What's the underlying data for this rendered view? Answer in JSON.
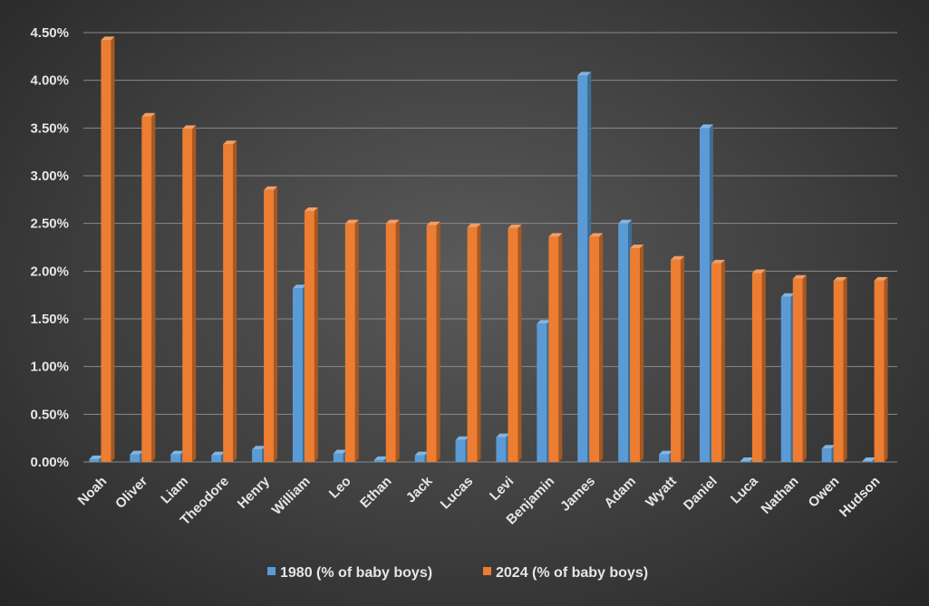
{
  "chart_data": {
    "type": "bar",
    "categories": [
      "Noah",
      "Oliver",
      "Liam",
      "Theodore",
      "Henry",
      "William",
      "Leo",
      "Ethan",
      "Jack",
      "Lucas",
      "Levi",
      "Benjamin",
      "James",
      "Adam",
      "Wyatt",
      "Daniel",
      "Luca",
      "Nathan",
      "Owen",
      "Hudson"
    ],
    "series": [
      {
        "name": "1980 (% of baby boys)",
        "color": "#5b9bd5",
        "values": [
          0.03,
          0.08,
          0.08,
          0.07,
          0.13,
          1.82,
          0.09,
          0.02,
          0.07,
          0.23,
          0.26,
          1.45,
          4.05,
          2.5,
          0.08,
          3.5,
          0.01,
          1.73,
          0.14,
          0.01
        ]
      },
      {
        "name": "2024 (% of baby boys)",
        "color": "#ed7d31",
        "values": [
          4.42,
          3.62,
          3.49,
          3.33,
          2.85,
          2.63,
          2.5,
          2.5,
          2.48,
          2.46,
          2.45,
          2.36,
          2.36,
          2.24,
          2.12,
          2.08,
          1.98,
          1.92,
          1.9,
          1.9
        ]
      }
    ],
    "yticks": [
      "0.00%",
      "0.50%",
      "1.00%",
      "1.50%",
      "2.00%",
      "2.50%",
      "3.00%",
      "3.50%",
      "4.00%",
      "4.50%"
    ],
    "ylim": [
      0,
      4.5
    ],
    "grid": true,
    "legend_position": "bottom"
  }
}
